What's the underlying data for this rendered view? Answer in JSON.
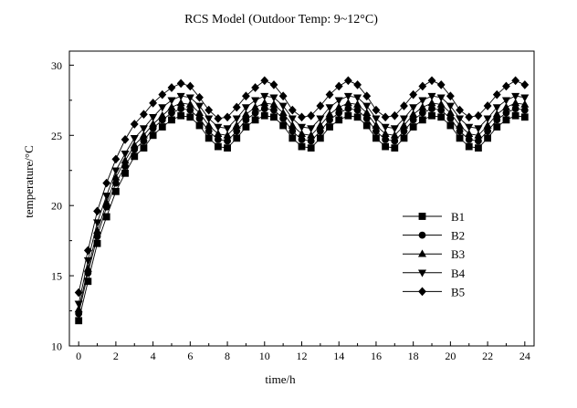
{
  "chart_data": {
    "type": "line",
    "title": "RCS Model (Outdoor Temp: 9~12°C)",
    "xlabel": "time/h",
    "ylabel": "temperature/°C",
    "xlim": [
      -0.5,
      24.5
    ],
    "ylim": [
      10,
      31
    ],
    "xticks": [
      0,
      2,
      4,
      6,
      8,
      10,
      12,
      14,
      16,
      18,
      20,
      22,
      24
    ],
    "yticks": [
      10,
      15,
      20,
      25,
      30
    ],
    "grid": false,
    "legend_position": "lower-right",
    "x": [
      0,
      0.5,
      1,
      1.5,
      2,
      2.5,
      3,
      3.5,
      4,
      4.5,
      5,
      5.5,
      6,
      6.5,
      7,
      7.5,
      8,
      8.5,
      9,
      9.5,
      10,
      10.5,
      11,
      11.5,
      12,
      12.5,
      13,
      13.5,
      14,
      14.5,
      15,
      15.5,
      16,
      16.5,
      17,
      17.5,
      18,
      18.5,
      19,
      19.5,
      20,
      20.5,
      21,
      21.5,
      22,
      22.5,
      23,
      23.5,
      24
    ],
    "series": [
      {
        "name": "B1",
        "marker": "square",
        "values": [
          11.8,
          14.6,
          17.3,
          19.2,
          21.0,
          22.3,
          23.5,
          24.1,
          25.0,
          25.6,
          26.1,
          26.4,
          26.3,
          25.7,
          24.8,
          24.2,
          24.1,
          24.8,
          25.6,
          26.1,
          26.4,
          26.3,
          25.7,
          24.8,
          24.2,
          24.1,
          24.8,
          25.6,
          26.1,
          26.4,
          26.3,
          25.7,
          24.8,
          24.2,
          24.1,
          24.8,
          25.6,
          26.1,
          26.4,
          26.3,
          25.7,
          24.8,
          24.2,
          24.1,
          24.8,
          25.6,
          26.1,
          26.4,
          26.3
        ]
      },
      {
        "name": "B2",
        "marker": "circle",
        "values": [
          12.3,
          15.2,
          17.8,
          19.9,
          21.6,
          22.8,
          24.0,
          24.6,
          25.5,
          26.1,
          26.6,
          26.9,
          26.8,
          26.2,
          25.3,
          24.7,
          24.6,
          25.3,
          26.1,
          26.6,
          26.9,
          26.8,
          26.2,
          25.3,
          24.7,
          24.6,
          25.3,
          26.1,
          26.6,
          26.9,
          26.8,
          26.2,
          25.3,
          24.7,
          24.6,
          25.3,
          26.1,
          26.6,
          26.9,
          26.8,
          26.2,
          25.3,
          24.7,
          24.6,
          25.3,
          26.1,
          26.6,
          26.9,
          26.8
        ]
      },
      {
        "name": "B3",
        "marker": "triangle-up",
        "values": [
          12.6,
          15.5,
          18.2,
          20.2,
          22.0,
          23.2,
          24.3,
          25.0,
          25.8,
          26.4,
          27.0,
          27.3,
          27.2,
          26.6,
          25.7,
          25.1,
          25.0,
          25.7,
          26.5,
          27.0,
          27.3,
          27.2,
          26.6,
          25.7,
          25.1,
          25.0,
          25.7,
          26.5,
          27.0,
          27.3,
          27.2,
          26.6,
          25.7,
          25.1,
          25.0,
          25.7,
          26.5,
          27.0,
          27.3,
          27.2,
          26.6,
          25.7,
          25.1,
          25.0,
          25.7,
          26.5,
          27.0,
          27.3,
          27.2
        ]
      },
      {
        "name": "B4",
        "marker": "triangle-down",
        "values": [
          13.0,
          16.1,
          18.8,
          20.7,
          22.5,
          23.7,
          24.8,
          25.5,
          26.3,
          27.0,
          27.5,
          27.8,
          27.7,
          27.1,
          26.2,
          25.6,
          25.5,
          26.2,
          27.0,
          27.5,
          27.8,
          27.7,
          27.1,
          26.2,
          25.6,
          25.5,
          26.2,
          27.0,
          27.5,
          27.8,
          27.7,
          27.1,
          26.2,
          25.6,
          25.5,
          26.2,
          27.0,
          27.5,
          27.8,
          27.7,
          27.1,
          26.2,
          25.6,
          25.5,
          26.2,
          27.0,
          27.5,
          27.8,
          27.7
        ]
      },
      {
        "name": "B5",
        "marker": "diamond",
        "values": [
          13.8,
          16.8,
          19.6,
          21.6,
          23.3,
          24.7,
          25.8,
          26.5,
          27.3,
          27.9,
          28.4,
          28.7,
          28.5,
          27.7,
          26.8,
          26.2,
          26.3,
          27.0,
          27.8,
          28.4,
          28.9,
          28.6,
          27.8,
          26.8,
          26.3,
          26.4,
          27.1,
          27.9,
          28.5,
          28.9,
          28.6,
          27.8,
          26.8,
          26.3,
          26.4,
          27.1,
          27.9,
          28.5,
          28.9,
          28.6,
          27.8,
          26.8,
          26.3,
          26.4,
          27.1,
          27.9,
          28.5,
          28.9,
          28.6
        ]
      }
    ]
  }
}
